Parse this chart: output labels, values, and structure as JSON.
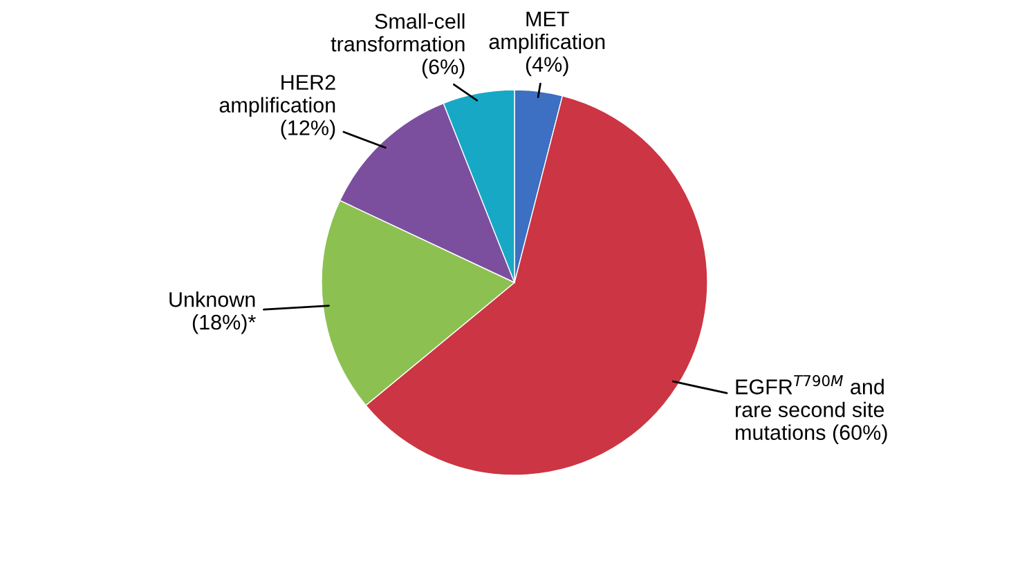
{
  "chart_data": {
    "type": "pie",
    "categories": [
      "MET\namplification\n(4%)",
      "EGFR$^{T790M}$ and\nrare second site\nmutations (60%)",
      "Unknown\n(18%)*",
      "HER2\namplification\n(12%)",
      "Small-cell\ntransformation\n(6%)"
    ],
    "values": [
      4,
      60,
      18,
      12,
      6
    ],
    "colors": [
      "#3d6fc2",
      "#cc3543",
      "#8cc152",
      "#7b4f9e",
      "#17a8c6"
    ]
  }
}
